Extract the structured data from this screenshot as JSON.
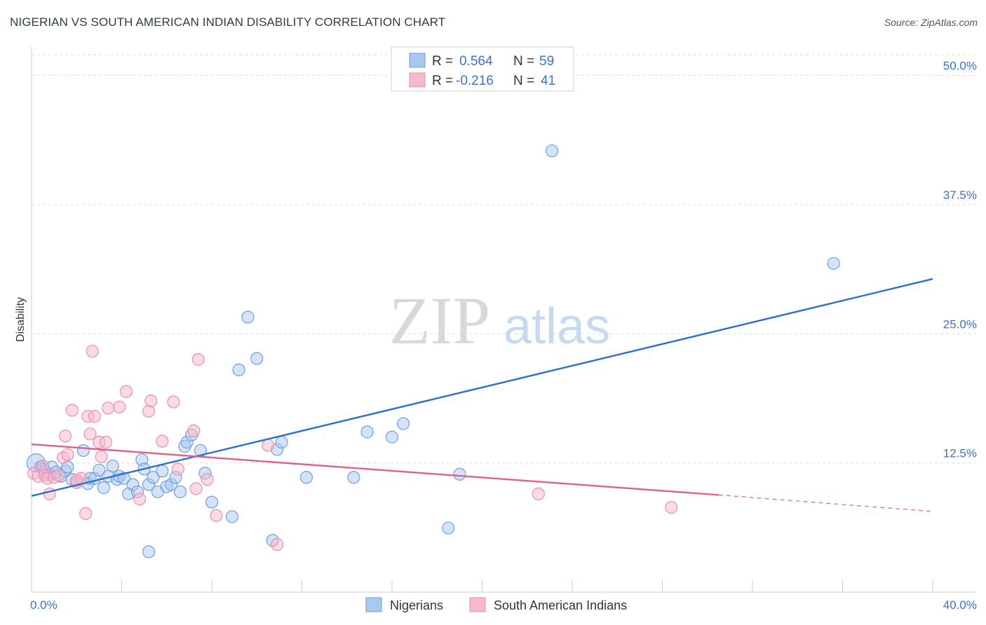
{
  "header": {
    "title": "NIGERIAN VS SOUTH AMERICAN INDIAN DISABILITY CORRELATION CHART",
    "source": "Source: ZipAtlas.com"
  },
  "watermark": {
    "zip": "ZIP",
    "atlas": "atlas"
  },
  "colors": {
    "blue_fill": "#a9c8f0",
    "blue_stroke": "#6f9ee0",
    "blue_line": "#2f6fcc",
    "pink_fill": "#f6b8cb",
    "pink_stroke": "#ec8ea9",
    "pink_line": "#e0608a",
    "tick_text": "#3b74c6",
    "grid": "#dddddd"
  },
  "legend": {
    "rows": [
      {
        "r_label": "R =",
        "r_value": "0.564",
        "n_label": "N =",
        "n_value": "59"
      },
      {
        "r_label": "R =",
        "r_value": "-0.216",
        "n_label": "N =",
        "n_value": "41"
      }
    ]
  },
  "chart_data": {
    "type": "scatter",
    "title": "NIGERIAN VS SOUTH AMERICAN INDIAN DISABILITY CORRELATION CHART",
    "xlabel": "",
    "ylabel": "Disability",
    "xlim": [
      0,
      40
    ],
    "ylim": [
      0,
      52
    ],
    "x_tick_labels": [
      {
        "value": 0,
        "label": "0.0%"
      },
      {
        "value": 40,
        "label": "40.0%"
      }
    ],
    "y_tick_labels": [
      {
        "value": 12.5,
        "label": "12.5%"
      },
      {
        "value": 25,
        "label": "25.0%"
      },
      {
        "value": 37.5,
        "label": "37.5%"
      },
      {
        "value": 50,
        "label": "50.0%"
      }
    ],
    "grid": true,
    "legend_position": "top-center",
    "series": [
      {
        "name": "Nigerians",
        "color": "#a9c8f0",
        "points": [
          [
            0.2,
            12.5
          ],
          [
            0.4,
            12.1
          ],
          [
            0.5,
            11.9
          ],
          [
            0.6,
            11.7
          ],
          [
            0.8,
            11.4
          ],
          [
            0.9,
            12.1
          ],
          [
            1.1,
            11.6
          ],
          [
            1.3,
            11.2
          ],
          [
            1.5,
            11.7
          ],
          [
            1.6,
            12.1
          ],
          [
            1.8,
            10.9
          ],
          [
            2.0,
            10.6
          ],
          [
            2.3,
            13.7
          ],
          [
            2.5,
            10.5
          ],
          [
            2.6,
            11.0
          ],
          [
            2.8,
            11.0
          ],
          [
            3.0,
            11.8
          ],
          [
            3.2,
            10.1
          ],
          [
            3.4,
            11.2
          ],
          [
            3.6,
            12.2
          ],
          [
            3.8,
            10.9
          ],
          [
            3.9,
            11.2
          ],
          [
            4.1,
            11.0
          ],
          [
            4.3,
            9.5
          ],
          [
            4.5,
            10.4
          ],
          [
            4.7,
            9.7
          ],
          [
            4.9,
            12.8
          ],
          [
            5.0,
            11.9
          ],
          [
            5.2,
            10.4
          ],
          [
            5.4,
            11.1
          ],
          [
            5.6,
            9.7
          ],
          [
            5.8,
            11.7
          ],
          [
            6.0,
            10.2
          ],
          [
            6.2,
            10.4
          ],
          [
            6.4,
            11.1
          ],
          [
            6.6,
            9.7
          ],
          [
            6.8,
            14.1
          ],
          [
            6.9,
            14.5
          ],
          [
            7.1,
            15.2
          ],
          [
            7.5,
            13.7
          ],
          [
            7.7,
            11.5
          ],
          [
            8.0,
            8.7
          ],
          [
            8.9,
            7.3
          ],
          [
            9.2,
            21.5
          ],
          [
            9.6,
            26.6
          ],
          [
            10.0,
            22.6
          ],
          [
            10.7,
            5.0
          ],
          [
            10.9,
            13.8
          ],
          [
            11.1,
            14.5
          ],
          [
            12.2,
            11.1
          ],
          [
            14.3,
            11.1
          ],
          [
            14.9,
            15.5
          ],
          [
            16.0,
            15.0
          ],
          [
            16.5,
            16.3
          ],
          [
            18.5,
            6.2
          ],
          [
            19.0,
            11.4
          ],
          [
            23.1,
            42.7
          ],
          [
            35.6,
            31.8
          ],
          [
            5.2,
            3.9
          ]
        ]
      },
      {
        "name": "South American Indians",
        "color": "#f6b8cb",
        "points": [
          [
            0.1,
            11.5
          ],
          [
            0.3,
            11.2
          ],
          [
            0.5,
            12.2
          ],
          [
            0.6,
            11.3
          ],
          [
            0.7,
            11.0
          ],
          [
            0.8,
            9.5
          ],
          [
            1.0,
            11.1
          ],
          [
            1.2,
            11.3
          ],
          [
            1.4,
            13.0
          ],
          [
            1.5,
            15.1
          ],
          [
            1.6,
            13.3
          ],
          [
            1.8,
            17.6
          ],
          [
            2.0,
            10.6
          ],
          [
            2.2,
            11.0
          ],
          [
            2.4,
            7.6
          ],
          [
            2.5,
            17.0
          ],
          [
            2.6,
            15.3
          ],
          [
            2.7,
            23.3
          ],
          [
            2.8,
            17.0
          ],
          [
            3.0,
            14.5
          ],
          [
            3.1,
            13.1
          ],
          [
            3.3,
            14.5
          ],
          [
            3.4,
            17.8
          ],
          [
            3.9,
            17.9
          ],
          [
            4.2,
            19.4
          ],
          [
            4.8,
            9.0
          ],
          [
            5.2,
            17.5
          ],
          [
            5.3,
            18.5
          ],
          [
            5.8,
            14.6
          ],
          [
            6.3,
            18.4
          ],
          [
            6.5,
            11.9
          ],
          [
            7.2,
            15.6
          ],
          [
            7.3,
            10.0
          ],
          [
            7.4,
            22.5
          ],
          [
            7.8,
            10.9
          ],
          [
            8.2,
            7.4
          ],
          [
            10.5,
            14.2
          ],
          [
            10.9,
            4.6
          ],
          [
            22.5,
            9.5
          ],
          [
            28.4,
            8.2
          ],
          [
            2.0,
            10.8
          ]
        ]
      }
    ],
    "trend_lines": [
      {
        "series": "Nigerians",
        "x": [
          0,
          40
        ],
        "y": [
          9.3,
          30.3
        ]
      },
      {
        "series": "South American Indians",
        "x": [
          0,
          30.5
        ],
        "y": [
          14.3,
          9.4
        ],
        "dashed_x": [
          30.5,
          40
        ],
        "dashed_y": [
          9.4,
          7.8
        ]
      }
    ]
  },
  "bottom_legend": {
    "items": [
      {
        "label": "Nigerians"
      },
      {
        "label": "South American Indians"
      }
    ]
  }
}
